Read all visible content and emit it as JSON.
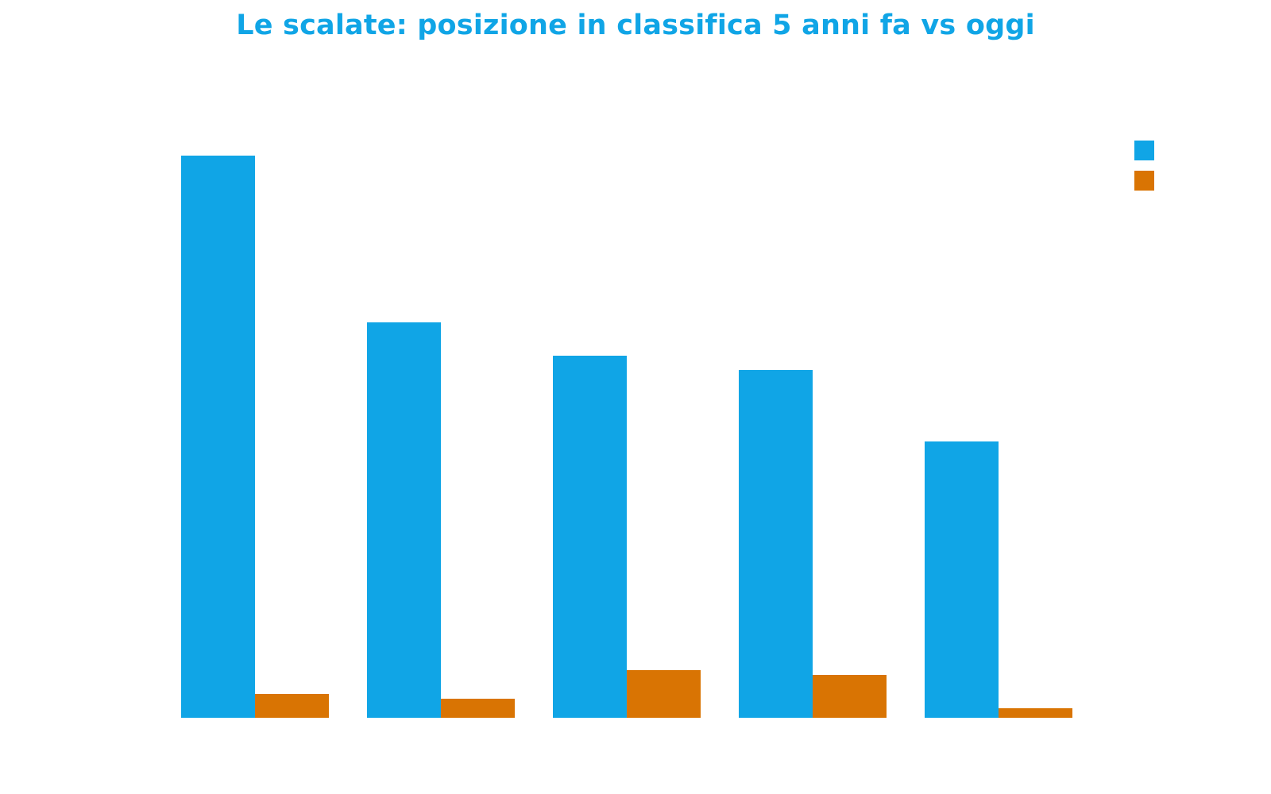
{
  "chart_data": {
    "type": "bar",
    "title": "Le scalate: posizione in classifica 5 anni fa vs oggi",
    "categories": [
      "",
      "",
      "",
      "",
      ""
    ],
    "series": [
      {
        "values": [
          118,
          83,
          76,
          73,
          58
        ],
        "color": "#10a5e6"
      },
      {
        "values": [
          5,
          4,
          10,
          9,
          2
        ],
        "color": "#d97403"
      }
    ],
    "ylim": [
      0,
      120
    ],
    "grid": false,
    "legend": "top-right"
  },
  "colors": {
    "title": "#10a5e6"
  }
}
